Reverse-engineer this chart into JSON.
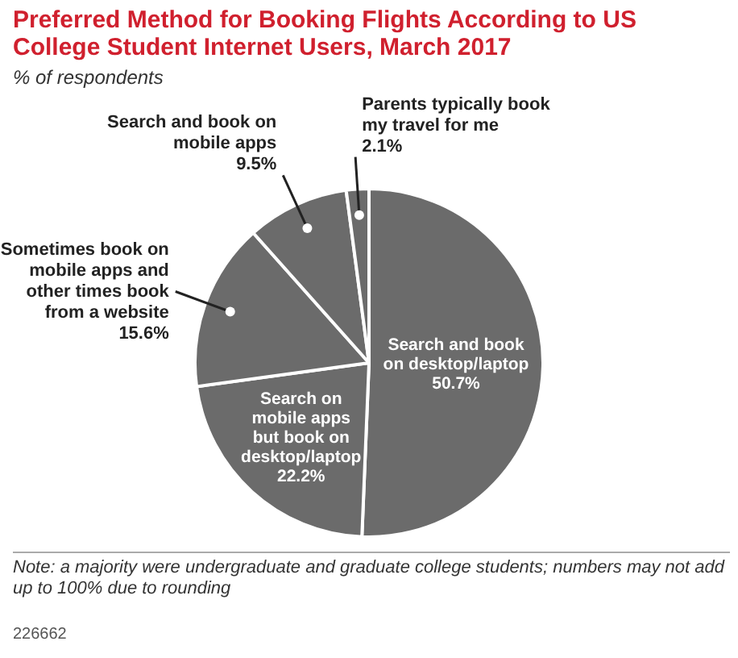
{
  "chart_data": {
    "type": "pie",
    "title": "Preferred Method for Booking Flights According to US College Student Internet Users, March 2017",
    "subtitle": "% of respondents",
    "categories": [
      "Search and book on desktop/laptop",
      "Search on mobile apps but book on desktop/laptop",
      "Sometimes book on mobile apps and other times book from a website",
      "Search and book on mobile apps",
      "Parents typically book my travel for me"
    ],
    "values": [
      50.7,
      22.2,
      15.6,
      9.5,
      2.1
    ],
    "value_labels": [
      "50.7%",
      "22.2%",
      "15.6%",
      "9.5%",
      "2.1%"
    ],
    "colors": [
      "#6b6b6b",
      "#6b6b6b",
      "#6b6b6b",
      "#6b6b6b",
      "#6b6b6b"
    ],
    "annotations": [
      "Note: a majority were undergraduate and graduate college students; numbers may not add up to 100% due to rounding",
      "226662"
    ]
  }
}
